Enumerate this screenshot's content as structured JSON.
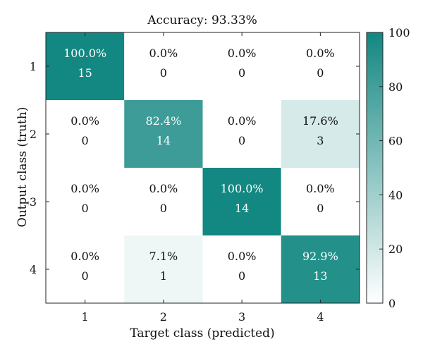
{
  "chart_data": {
    "type": "heatmap",
    "title": "Accuracy: 93.33%",
    "xlabel": "Target class (predicted)",
    "ylabel": "Output class (truth)",
    "x_categories": [
      "1",
      "2",
      "3",
      "4"
    ],
    "y_categories": [
      "1",
      "2",
      "3",
      "4"
    ],
    "percent_labels": [
      [
        "100.0%",
        "0.0%",
        "0.0%",
        "0.0%"
      ],
      [
        "0.0%",
        "82.4%",
        "0.0%",
        "17.6%"
      ],
      [
        "0.0%",
        "0.0%",
        "100.0%",
        "0.0%"
      ],
      [
        "0.0%",
        "7.1%",
        "0.0%",
        "92.9%"
      ]
    ],
    "percent_values": [
      [
        100.0,
        0.0,
        0.0,
        0.0
      ],
      [
        0.0,
        82.4,
        0.0,
        17.6
      ],
      [
        0.0,
        0.0,
        100.0,
        0.0
      ],
      [
        0.0,
        7.1,
        0.0,
        92.9
      ]
    ],
    "counts": [
      [
        15,
        0,
        0,
        0
      ],
      [
        0,
        14,
        0,
        3
      ],
      [
        0,
        0,
        14,
        0
      ],
      [
        0,
        1,
        0,
        13
      ]
    ],
    "colorbar": {
      "range": [
        0,
        100
      ],
      "ticks": [
        "0",
        "20",
        "40",
        "60",
        "80",
        "100"
      ],
      "color_low": "#ffffff",
      "color_high": "#138781"
    }
  }
}
